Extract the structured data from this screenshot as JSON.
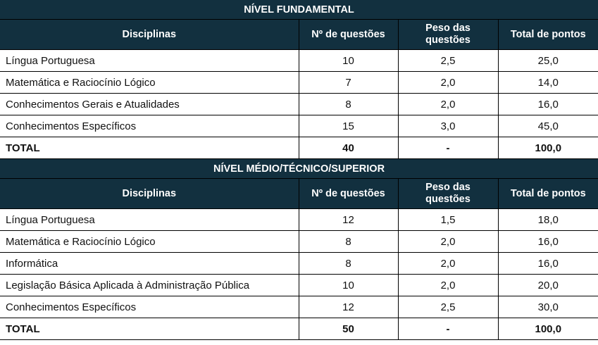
{
  "sections": [
    {
      "title": "NÍVEL FUNDAMENTAL",
      "columns": [
        "Disciplinas",
        "Nº de questões",
        "Peso das questões",
        "Total de pontos"
      ],
      "column_lines": {
        "peso_line1": "Peso das",
        "peso_line2": "questões"
      },
      "rows": [
        {
          "disciplina": "Língua Portuguesa",
          "questoes": "10",
          "peso": "2,5",
          "pontos": "25,0"
        },
        {
          "disciplina": "Matemática e Raciocínio Lógico",
          "questoes": "7",
          "peso": "2,0",
          "pontos": "14,0"
        },
        {
          "disciplina": "Conhecimentos Gerais e Atualidades",
          "questoes": "8",
          "peso": "2,0",
          "pontos": "16,0"
        },
        {
          "disciplina": "Conhecimentos Específicos",
          "questoes": "15",
          "peso": "3,0",
          "pontos": "45,0"
        }
      ],
      "total": {
        "label": "TOTAL",
        "questoes": "40",
        "peso": "-",
        "pontos": "100,0"
      }
    },
    {
      "title": "NÍVEL MÉDIO/TÉCNICO/SUPERIOR",
      "columns": [
        "Disciplinas",
        "Nº de questões",
        "Peso das questões",
        "Total de pontos"
      ],
      "column_lines": {
        "peso_line1": "Peso das",
        "peso_line2": "questões"
      },
      "rows": [
        {
          "disciplina": "Língua Portuguesa",
          "questoes": "12",
          "peso": "1,5",
          "pontos": "18,0"
        },
        {
          "disciplina": "Matemática e Raciocínio Lógico",
          "questoes": "8",
          "peso": "2,0",
          "pontos": "16,0"
        },
        {
          "disciplina": "Informática",
          "questoes": "8",
          "peso": "2,0",
          "pontos": "16,0"
        },
        {
          "disciplina": "Legislação Básica Aplicada à Administração Pública",
          "questoes": "10",
          "peso": "2,0",
          "pontos": "20,0"
        },
        {
          "disciplina": "Conhecimentos Específicos",
          "questoes": "12",
          "peso": "2,5",
          "pontos": "30,0"
        }
      ],
      "total": {
        "label": "TOTAL",
        "questoes": "50",
        "peso": "-",
        "pontos": "100,0"
      }
    }
  ],
  "colors": {
    "header_bg": "#12303f",
    "header_text": "#ffffff",
    "border": "#000000"
  }
}
